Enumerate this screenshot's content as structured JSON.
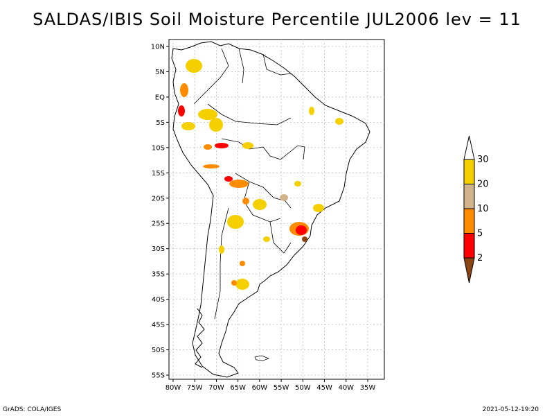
{
  "title": "SALDAS/IBIS Soil Moisture Percentile JUL2006 lev = 11",
  "y_ticks": [
    "10N",
    "5N",
    "EQ",
    "5S",
    "10S",
    "15S",
    "20S",
    "25S",
    "30S",
    "35S",
    "40S",
    "45S",
    "50S",
    "55S"
  ],
  "x_ticks": [
    "80W",
    "75W",
    "70W",
    "65W",
    "60W",
    "55W",
    "50W",
    "45W",
    "40W",
    "35W"
  ],
  "legend": {
    "labels": [
      "30",
      "20",
      "10",
      "5",
      "2"
    ],
    "colors": [
      "#ffffff",
      "#f5d000",
      "#d2b48c",
      "#ff8c00",
      "#ff0000",
      "#8b4513"
    ]
  },
  "footer": {
    "left": "GrADS: COLA/IGES",
    "right": "2021-05-12-19:20"
  }
}
